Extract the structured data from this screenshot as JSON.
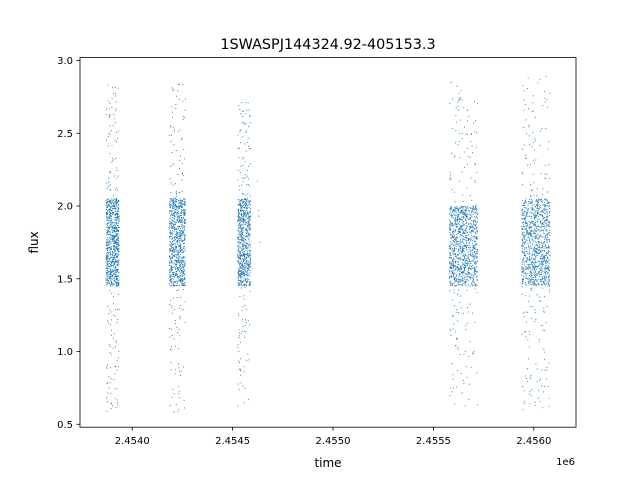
{
  "chart_data": {
    "type": "scatter",
    "title": "1SWASPJ144324.92-405153.3",
    "xlabel": "time",
    "ylabel": "flux",
    "x_offset_label": "1e6",
    "xlim": [
      2453740,
      2456210
    ],
    "ylim": [
      0.48,
      3.02
    ],
    "x_ticks": [
      2454000,
      2454500,
      2455000,
      2455500,
      2456000
    ],
    "x_tick_labels": [
      "2.4540",
      "2.4545",
      "2.4550",
      "2.4555",
      "2.4560"
    ],
    "y_ticks": [
      0.5,
      1.0,
      1.5,
      2.0,
      2.5,
      3.0
    ],
    "y_tick_labels": [
      "0.5",
      "1.0",
      "1.5",
      "2.0",
      "2.5",
      "3.0"
    ],
    "grid": false,
    "marker_color": "#1f77b4",
    "clusters": [
      {
        "x_range": [
          2453870,
          2453935
        ],
        "core_y": [
          1.45,
          2.05
        ],
        "full_y": [
          0.58,
          2.84
        ],
        "count": 900
      },
      {
        "x_range": [
          2454185,
          2454265
        ],
        "core_y": [
          1.45,
          2.05
        ],
        "full_y": [
          0.58,
          2.9
        ],
        "count": 900
      },
      {
        "x_range": [
          2454525,
          2454590
        ],
        "core_y": [
          1.45,
          2.05
        ],
        "full_y": [
          0.6,
          2.72
        ],
        "count": 800
      },
      {
        "x_range": [
          2455580,
          2455720
        ],
        "core_y": [
          1.45,
          2.0
        ],
        "full_y": [
          0.6,
          2.85
        ],
        "count": 1100
      },
      {
        "x_range": [
          2455940,
          2456080
        ],
        "core_y": [
          1.45,
          2.05
        ],
        "full_y": [
          0.6,
          2.9
        ],
        "count": 1100
      }
    ],
    "outliers": [
      {
        "x": 2454625,
        "y": 2.17
      },
      {
        "x": 2454630,
        "y": 1.97
      },
      {
        "x": 2454630,
        "y": 1.93
      },
      {
        "x": 2454635,
        "y": 1.75
      }
    ]
  }
}
